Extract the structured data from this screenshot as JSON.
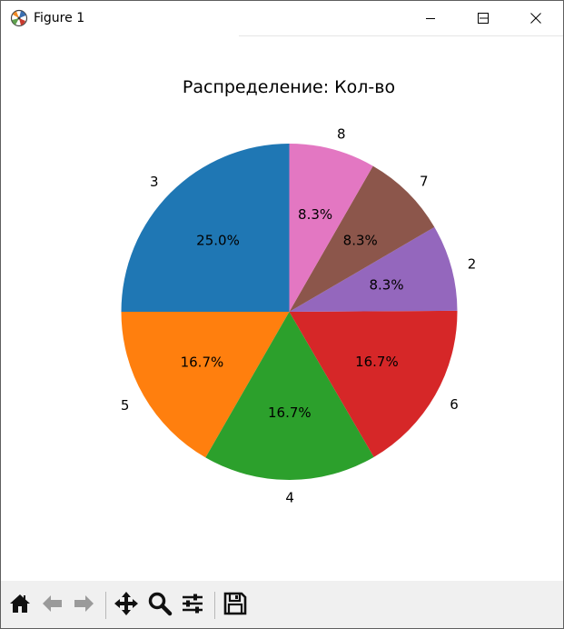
{
  "window": {
    "title": "Figure 1",
    "buttons": [
      "minimize-icon",
      "maximize-icon",
      "close-icon"
    ]
  },
  "toolbar": {
    "buttons": [
      "home-icon",
      "back-arrow-icon",
      "forward-arrow-icon",
      "pan-icon",
      "zoom-icon",
      "configure-subplots-icon",
      "save-icon"
    ]
  },
  "chart_data": {
    "type": "pie",
    "title": "Распределение: Кол-во",
    "start_angle": 90,
    "counterclock": true,
    "slices": [
      {
        "label": "3",
        "value": 25.0,
        "pct_label": "25.0%",
        "color": "#1f77b4"
      },
      {
        "label": "5",
        "value": 16.7,
        "pct_label": "16.7%",
        "color": "#ff7f0e"
      },
      {
        "label": "4",
        "value": 16.7,
        "pct_label": "16.7%",
        "color": "#2ca02c"
      },
      {
        "label": "6",
        "value": 16.7,
        "pct_label": "16.7%",
        "color": "#d62728"
      },
      {
        "label": "2",
        "value": 8.3,
        "pct_label": "8.3%",
        "color": "#9467bd"
      },
      {
        "label": "7",
        "value": 8.3,
        "pct_label": "8.3%",
        "color": "#8c564b"
      },
      {
        "label": "8",
        "value": 8.3,
        "pct_label": "8.3%",
        "color": "#e377c2"
      }
    ]
  }
}
